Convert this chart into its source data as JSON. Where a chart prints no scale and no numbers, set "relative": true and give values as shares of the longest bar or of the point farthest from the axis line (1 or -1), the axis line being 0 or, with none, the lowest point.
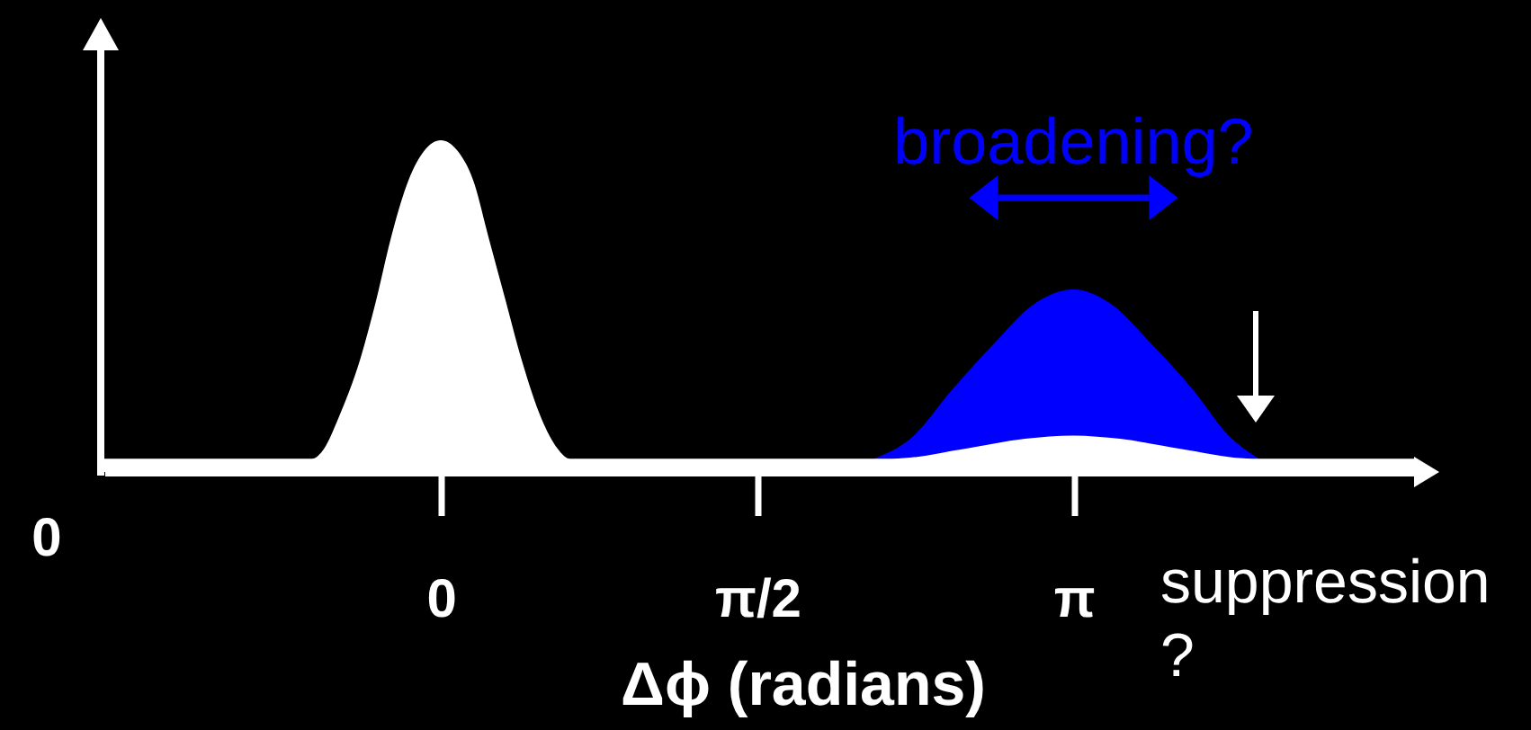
{
  "chart_data": {
    "type": "area",
    "relative": true,
    "xlabel": "Δϕ (radians)",
    "xlim": [
      -1.67,
      4.83
    ],
    "xticks": [
      0,
      {
        "value": 1.5708,
        "label": "π/2"
      },
      {
        "value": 3.1416,
        "label": "π"
      }
    ],
    "series": [
      {
        "color": "#0000ff",
        "x": [
          2.15,
          2.33,
          2.54,
          2.75,
          2.93,
          3.14,
          3.34,
          3.52,
          3.73,
          3.91,
          4.06
        ],
        "values": [
          0.04,
          0.1,
          0.25,
          0.39,
          0.5,
          0.55,
          0.5,
          0.39,
          0.25,
          0.11,
          0.04
        ]
      },
      {
        "color": "#ffffff",
        "x": [
          -1.67,
          -0.64,
          -0.58,
          -0.51,
          -0.4,
          -0.32,
          -0.25,
          -0.16,
          -0.08,
          0,
          0.08,
          0.16,
          0.24,
          0.32,
          0.4,
          0.5,
          0.58,
          0.64,
          2.24,
          2.6,
          2.9,
          3.14,
          3.37,
          3.67,
          4.03,
          4.83
        ],
        "values": [
          0.04,
          0.04,
          0.07,
          0.16,
          0.34,
          0.52,
          0.7,
          0.88,
          0.97,
          1,
          0.97,
          0.88,
          0.7,
          0.52,
          0.34,
          0.16,
          0.07,
          0.04,
          0.04,
          0.07,
          0.1,
          0.11,
          0.1,
          0.07,
          0.04,
          0.04
        ]
      }
    ],
    "annotations": [
      "0",
      "broadening?",
      "suppression ?"
    ]
  }
}
